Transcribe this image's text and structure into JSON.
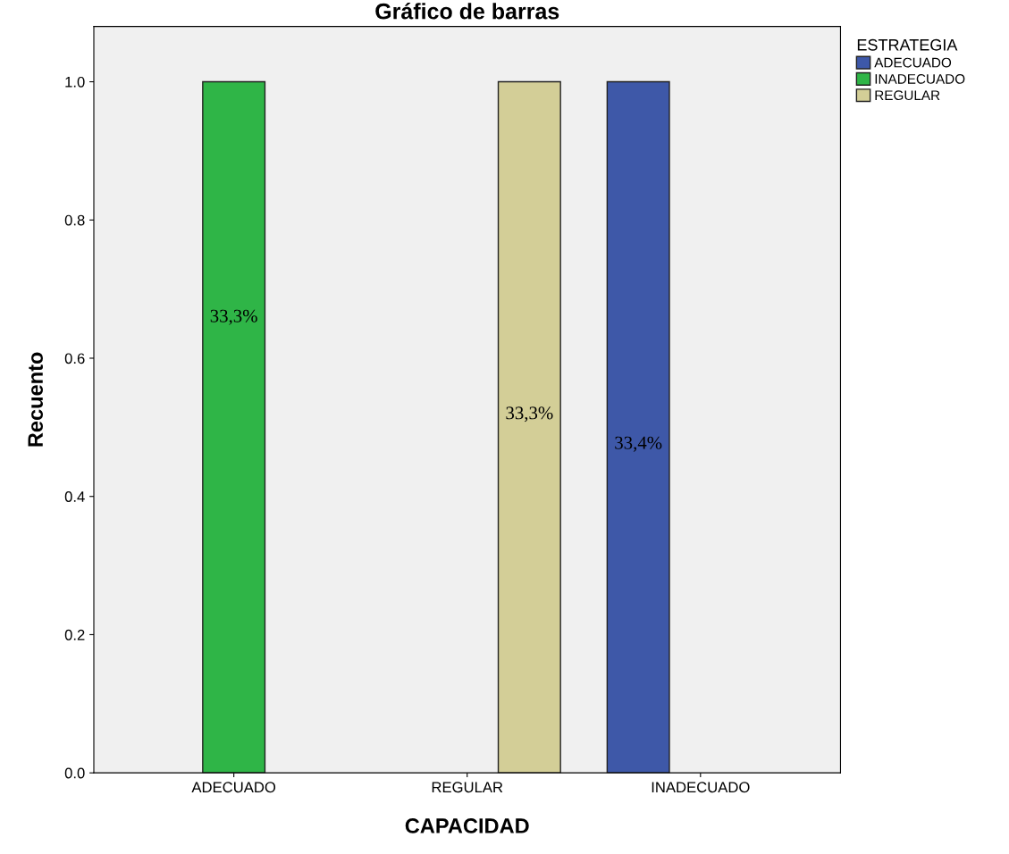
{
  "chart_data": {
    "type": "bar",
    "title": "Gráfico de barras",
    "xlabel": "CAPACIDAD",
    "ylabel": "Recuento",
    "legend_title": "ESTRATEGIA",
    "categories": [
      "ADECUADO",
      "REGULAR",
      "INADECUADO"
    ],
    "series": [
      {
        "name": "ADECUADO",
        "color": "#3e58a8",
        "values": [
          null,
          null,
          1.0
        ]
      },
      {
        "name": "INADECUADO",
        "color": "#2fb547",
        "values": [
          1.0,
          null,
          null
        ]
      },
      {
        "name": "REGULAR",
        "color": "#d3ce97",
        "values": [
          null,
          1.0,
          null
        ]
      }
    ],
    "annotations": [
      "33,3%",
      "33,3%",
      "33,4%"
    ],
    "ylim": [
      0,
      1.08
    ],
    "yticks": [
      {
        "value": 0,
        "label": "0.0"
      },
      {
        "value": 0.2,
        "label": "0.2"
      },
      {
        "value": 0.4,
        "label": "0.4"
      },
      {
        "value": 0.6,
        "label": "0.6"
      },
      {
        "value": 0.8,
        "label": "0.8"
      },
      {
        "value": 1.0,
        "label": "1.0"
      }
    ],
    "grid": false,
    "legend": "top right"
  }
}
